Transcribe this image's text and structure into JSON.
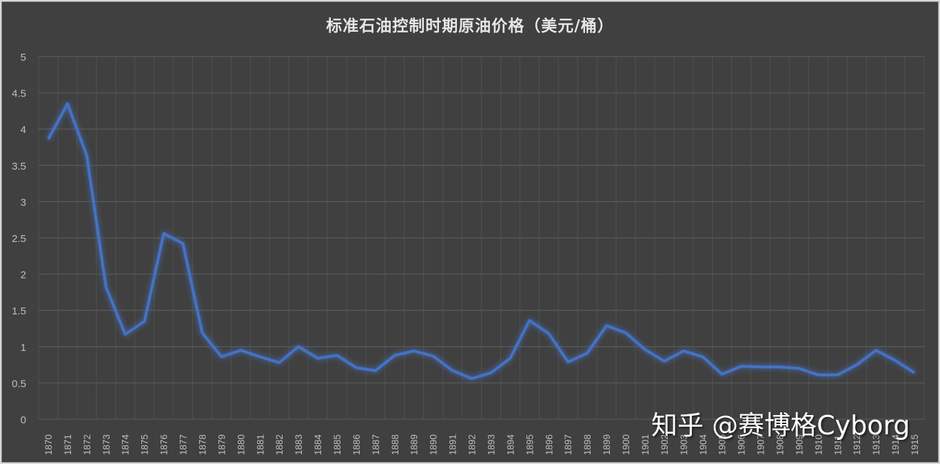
{
  "title": "标准石油控制时期原油价格（美元/桶）",
  "watermark": "知乎 @赛博格Cyborg",
  "colors": {
    "background": "#404040",
    "gridline": "#595959",
    "line": "#4472c4",
    "text": "#bfbfbf",
    "title": "#e6e6e6"
  },
  "chart_data": {
    "type": "line",
    "title": "标准石油控制时期原油价格（美元/桶）",
    "xlabel": "",
    "ylabel": "",
    "ylim": [
      0,
      5
    ],
    "yticks": [
      0,
      0.5,
      1,
      1.5,
      2,
      2.5,
      3,
      3.5,
      4,
      4.5,
      5
    ],
    "ytick_labels": [
      "0",
      "0.5",
      "1",
      "1.5",
      "2",
      "2.5",
      "3",
      "3.5",
      "4",
      "4.5",
      "5"
    ],
    "grid": true,
    "legend": null,
    "categories": [
      "1870",
      "1871",
      "1872",
      "1873",
      "1874",
      "1875",
      "1876",
      "1877",
      "1878",
      "1879",
      "1880",
      "1881",
      "1882",
      "1883",
      "1884",
      "1885",
      "1886",
      "1887",
      "1888",
      "1889",
      "1890",
      "1891",
      "1892",
      "1893",
      "1894",
      "1895",
      "1896",
      "1897",
      "1898",
      "1899",
      "1900",
      "1901",
      "1902",
      "1903",
      "1904",
      "1905",
      "1906",
      "1907",
      "1908",
      "1909",
      "1910",
      "1911",
      "1912",
      "1913",
      "1914",
      "1915"
    ],
    "series": [
      {
        "name": "原油价格（美元/桶）",
        "values": [
          3.86,
          4.35,
          3.64,
          1.82,
          1.17,
          1.35,
          2.56,
          2.42,
          1.19,
          0.86,
          0.95,
          0.86,
          0.78,
          1.0,
          0.84,
          0.88,
          0.71,
          0.67,
          0.88,
          0.94,
          0.87,
          0.67,
          0.56,
          0.64,
          0.84,
          1.36,
          1.18,
          0.79,
          0.91,
          1.29,
          1.19,
          0.96,
          0.8,
          0.94,
          0.86,
          0.62,
          0.73,
          0.72,
          0.72,
          0.7,
          0.61,
          0.61,
          0.75,
          0.95,
          0.81,
          0.64
        ]
      }
    ]
  }
}
